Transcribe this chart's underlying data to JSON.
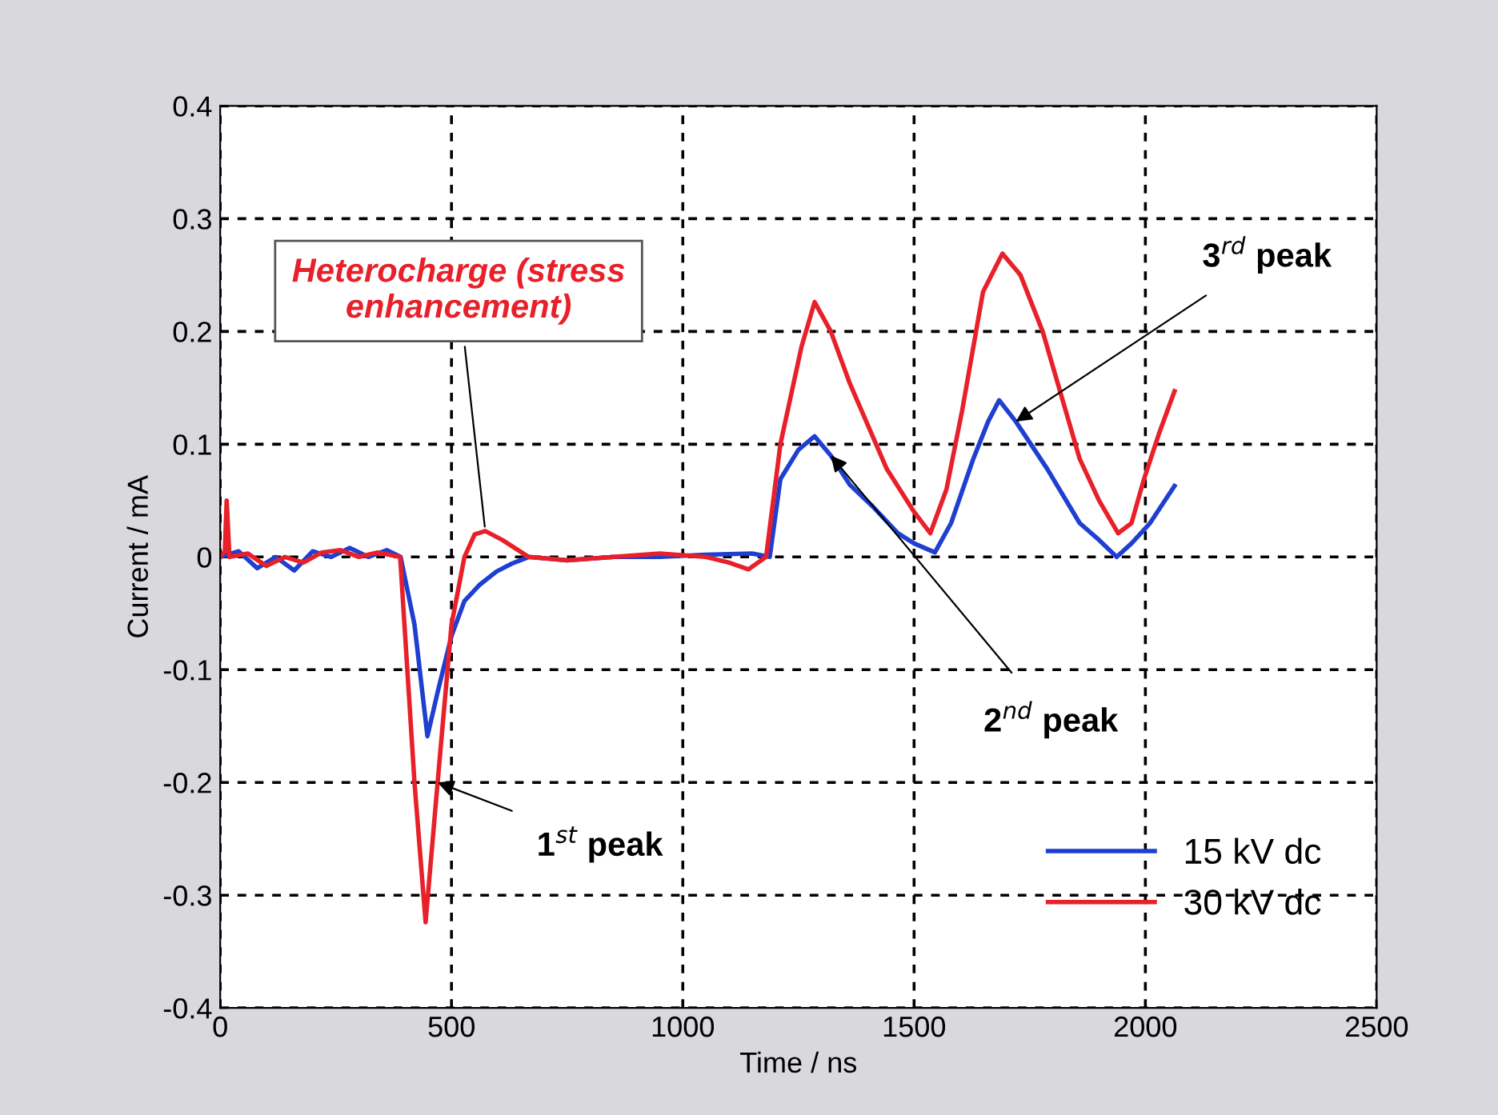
{
  "chart_data": {
    "type": "line",
    "xlabel": "Time / ns",
    "ylabel": "Current / mA",
    "xlim": [
      0,
      2500
    ],
    "xticks": [
      0,
      500,
      1000,
      1500,
      2000,
      2500
    ],
    "ylim": [
      -0.4,
      0.4
    ],
    "yticks": [
      -0.4,
      -0.3,
      -0.2,
      -0.1,
      0,
      0.1,
      0.2,
      0.3,
      0.4
    ],
    "grid": true,
    "legend": "bottom right",
    "line_style": "solid",
    "marker": "none",
    "series": [
      {
        "name": "15 kV dc",
        "color": "#1f3fd0",
        "x": [
          0,
          40,
          80,
          120,
          160,
          200,
          240,
          280,
          320,
          360,
          390,
          420,
          448,
          470,
          500,
          528,
          560,
          597,
          630,
          667,
          750,
          850,
          950,
          1050,
          1150,
          1188,
          1211,
          1250,
          1285,
          1320,
          1361,
          1410,
          1465,
          1500,
          1545,
          1580,
          1628,
          1660,
          1684,
          1720,
          1788,
          1858,
          1900,
          1938,
          1970,
          2010,
          2063
        ],
        "values": [
          0,
          0.005,
          -0.01,
          0,
          -0.012,
          0.005,
          0,
          0.008,
          0,
          0.006,
          0,
          -0.06,
          -0.159,
          -0.12,
          -0.07,
          -0.039,
          -0.025,
          -0.013,
          -0.006,
          0,
          -0.003,
          0,
          0,
          0.002,
          0.003,
          0,
          0.069,
          0.095,
          0.107,
          0.09,
          0.064,
          0.045,
          0.021,
          0.012,
          0.004,
          0.03,
          0.087,
          0.12,
          0.139,
          0.12,
          0.078,
          0.03,
          0.015,
          0,
          0.012,
          0.03,
          0.063
        ]
      },
      {
        "name": "30 kV dc",
        "color": "#e8202a",
        "x": [
          0,
          10,
          14,
          20,
          60,
          100,
          140,
          180,
          220,
          260,
          300,
          340,
          389,
          420,
          444,
          470,
          500,
          528,
          550,
          573,
          610,
          667,
          750,
          850,
          950,
          1050,
          1100,
          1142,
          1180,
          1211,
          1257,
          1285,
          1320,
          1361,
          1441,
          1500,
          1535,
          1570,
          1604,
          1649,
          1691,
          1730,
          1778,
          1858,
          1900,
          1941,
          1970,
          1997,
          2030,
          2063
        ],
        "values": [
          0,
          0.005,
          0.05,
          0,
          0.003,
          -0.008,
          0,
          -0.005,
          0.004,
          0.006,
          0,
          0.004,
          0,
          -0.2,
          -0.324,
          -0.2,
          -0.06,
          0,
          0.02,
          0.023,
          0.015,
          0,
          -0.003,
          0,
          0.003,
          0,
          -0.005,
          -0.011,
          0,
          0.1,
          0.187,
          0.226,
          0.2,
          0.154,
          0.078,
          0.04,
          0.021,
          0.06,
          0.13,
          0.235,
          0.269,
          0.25,
          0.2,
          0.087,
          0.05,
          0.021,
          0.03,
          0.069,
          0.11,
          0.147
        ]
      }
    ],
    "annotations": [
      {
        "text": "Heterocharge (stress\nenhancement)",
        "x": 573,
        "y": 0.023
      },
      {
        "text": "1$^{st}$ peak",
        "x": 470,
        "y": -0.2
      },
      {
        "text": "2$^{nd}$ peak",
        "x": 1320,
        "y": 0.09
      },
      {
        "text": "3$^{rd}$ peak",
        "x": 1720,
        "y": 0.12
      }
    ]
  }
}
